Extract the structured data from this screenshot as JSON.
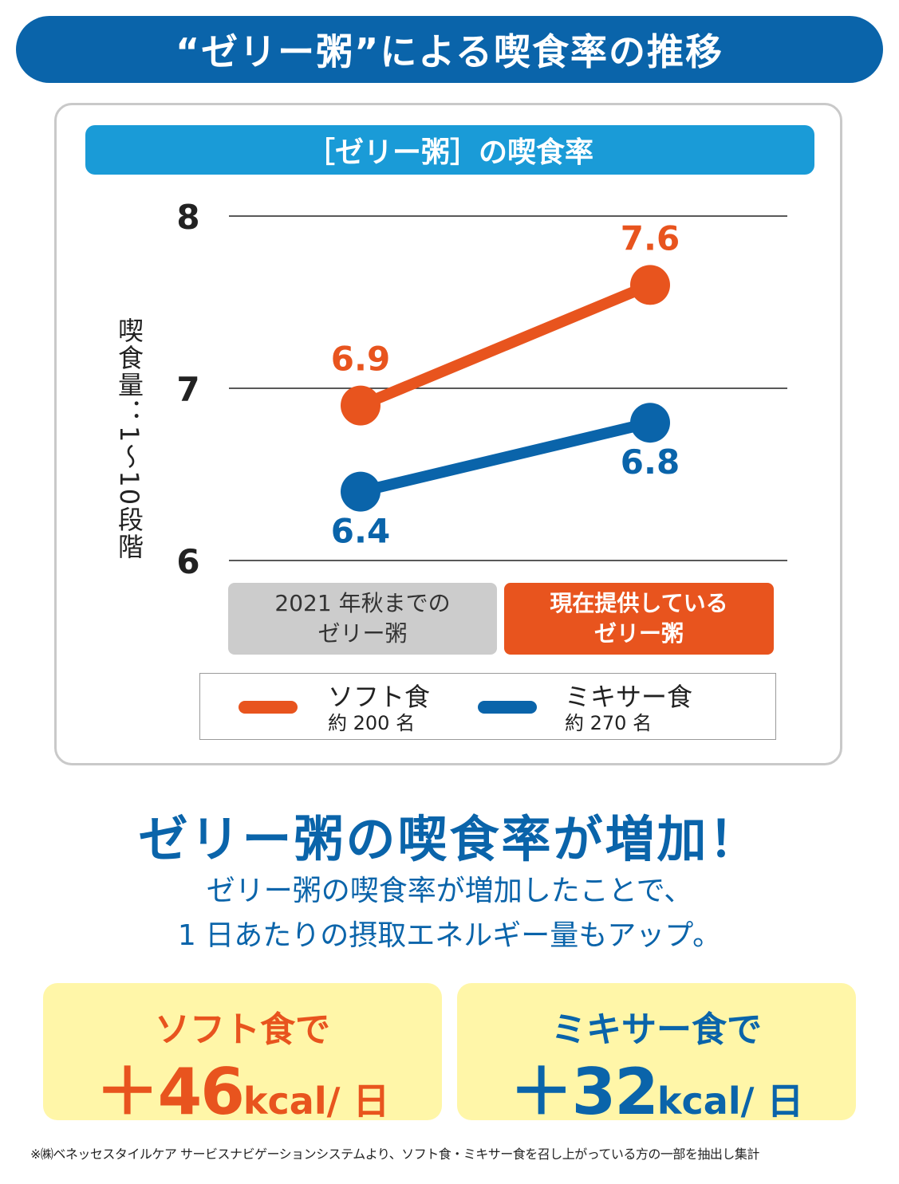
{
  "title": "“ゼリー粥”による喫食率の推移",
  "chart_header": "［ゼリー粥］の喫食率",
  "chart_data": {
    "type": "line",
    "title": "［ゼリー粥］の喫食率",
    "ylabel": "喫食量：1〜10段階",
    "ylim": [
      6,
      8
    ],
    "yticks": [
      "6",
      "7",
      "8"
    ],
    "categories": [
      "2021 年秋までの\nゼリー粥",
      "現在提供している\nゼリー粥"
    ],
    "series": [
      {
        "name": "ソフト食",
        "sub": "約 200 名",
        "color": "#e8541e",
        "values": [
          6.9,
          7.6
        ],
        "labels": [
          "6.9",
          "7.6"
        ]
      },
      {
        "name": "ミキサー食",
        "sub": "約 270 名",
        "color": "#0a64aa",
        "values": [
          6.4,
          6.8
        ],
        "labels": [
          "6.4",
          "6.8"
        ]
      }
    ],
    "grid": true,
    "legend": "bottom"
  },
  "headline": "ゼリー粥の喫食率が増加！",
  "subtext": {
    "line1": "ゼリー粥の喫食率が増加したことで、",
    "line2": "1 日あたりの摂取エネルギー量もアップ。"
  },
  "results": [
    {
      "label": "ソフト食で",
      "sign": "＋",
      "value": "46",
      "unit": "kcal/ 日"
    },
    {
      "label": "ミキサー食で",
      "sign": "＋",
      "value": "32",
      "unit": "kcal/ 日"
    }
  ],
  "footnote": "※㈱ベネッセスタイルケア サービスナビゲーションシステムより、ソフト食・ミキサー食を召し上がっている方の一部を抽出し集計"
}
